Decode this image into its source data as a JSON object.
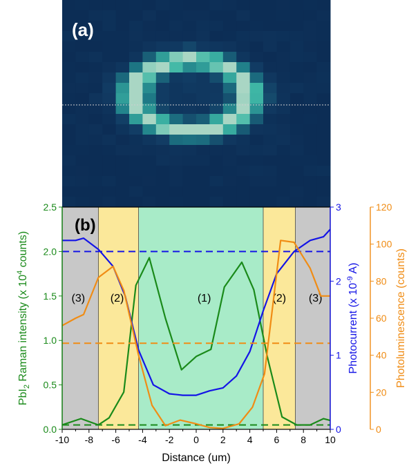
{
  "panel_a": {
    "label": "(a)",
    "colors": {
      "background": "#0c2d55",
      "dim": "#123d65",
      "mid": "#1f7d88",
      "bright": "#3fb8a6",
      "pale": "#a9d6c4",
      "dotted_line": "#cfcfcf"
    }
  },
  "panel_b": {
    "label": "(b)",
    "region_labels": [
      "(3)",
      "(2)",
      "(1)",
      "(2)",
      "(3)"
    ],
    "region_colors": {
      "(1)": "#a8ebc8",
      "(2)": "#fbe89a",
      "(3)": "#c8c8c8"
    }
  },
  "chart_data": {
    "type": "line",
    "title": "",
    "xlabel": "Distance (um)",
    "ylabel_left": "PbI2 Raman intensity (x 10^4 counts)",
    "ylabel_left_parts": {
      "pre": "PbI",
      "sub": "2",
      "mid": " Raman intensity (x 10",
      "sup": "4",
      "post": " counts)"
    },
    "ylabel_right1": "Photocurrent (x 10^-9 A)",
    "ylabel_right1_parts": {
      "pre": "Photocurrent (x 10",
      "sup": "-9",
      "post": " A)"
    },
    "ylabel_right2": "Photoluminescence (counts)",
    "xlim": [
      -10,
      10
    ],
    "ylim_left": [
      0,
      2.5
    ],
    "ylim_right1": [
      0,
      3
    ],
    "ylim_right2": [
      0,
      120
    ],
    "x_ticks": [
      -10,
      -8,
      -6,
      -4,
      -2,
      0,
      2,
      4,
      6,
      8,
      10
    ],
    "x_tick_labels": [
      "-10",
      "-8",
      "-6",
      "-4",
      "-2",
      "0",
      "2",
      "4",
      "6",
      "8",
      "10"
    ],
    "left_ticks": [
      0.0,
      0.5,
      1.0,
      1.5,
      2.0,
      2.5
    ],
    "left_tick_labels": [
      "0.0",
      "0.5",
      "1.0",
      "1.5",
      "2.0",
      "2.5"
    ],
    "right1_ticks": [
      0,
      1,
      2,
      3
    ],
    "right1_tick_labels": [
      "0",
      "1",
      "2",
      "3"
    ],
    "right2_ticks": [
      0,
      20,
      40,
      60,
      80,
      100,
      120
    ],
    "right2_tick_labels": [
      "0",
      "20",
      "40",
      "60",
      "80",
      "100",
      "120"
    ],
    "regions": [
      {
        "label": "(3)",
        "x0": -10,
        "x1": -7.3
      },
      {
        "label": "(2)",
        "x0": -7.3,
        "x1": -4.3
      },
      {
        "label": "(1)",
        "x0": -4.3,
        "x1": 5.0
      },
      {
        "label": "(2)",
        "x0": 5.0,
        "x1": 7.4
      },
      {
        "label": "(3)",
        "x0": 7.4,
        "x1": 10
      }
    ],
    "series": [
      {
        "name": "PbI2 Raman intensity",
        "axis": "left",
        "color": "#1a8a1a",
        "x": [
          -10,
          -8.6,
          -7.3,
          -6.5,
          -5.4,
          -4.5,
          -3.5,
          -2.3,
          -1.1,
          0,
          1.1,
          2.1,
          3.4,
          4.3,
          5.3,
          6.4,
          7.5,
          8.5,
          9.5,
          10
        ],
        "y": [
          0.05,
          0.12,
          0.05,
          0.13,
          0.42,
          1.62,
          1.93,
          1.25,
          0.67,
          0.82,
          0.9,
          1.6,
          1.88,
          1.57,
          0.82,
          0.14,
          0.05,
          0.05,
          0.12,
          0.1
        ]
      },
      {
        "name": "PbI2 Raman intensity reference",
        "axis": "left",
        "color": "#1a8a1a",
        "dashed": true,
        "x": [
          -10,
          10
        ],
        "y": [
          0.05,
          0.05
        ]
      },
      {
        "name": "Photocurrent",
        "axis": "right1",
        "color": "#1414e6",
        "x": [
          -10,
          -9,
          -8.4,
          -7.3,
          -6.2,
          -5.3,
          -4.3,
          -3.2,
          -2,
          -1,
          0,
          1,
          2,
          3,
          4,
          5,
          6,
          7.3,
          8.5,
          9.5,
          10
        ],
        "y": [
          2.55,
          2.55,
          2.58,
          2.43,
          2.2,
          1.8,
          1.07,
          0.6,
          0.48,
          0.46,
          0.46,
          0.52,
          0.56,
          0.72,
          1.05,
          1.6,
          2.1,
          2.4,
          2.55,
          2.6,
          2.7
        ]
      },
      {
        "name": "Photocurrent reference",
        "axis": "right1",
        "color": "#1414e6",
        "dashed": true,
        "x": [
          -10,
          10
        ],
        "y": [
          2.4,
          2.4
        ]
      },
      {
        "name": "Photoluminescence",
        "axis": "right2",
        "color": "#f08c14",
        "x": [
          -10,
          -9,
          -8.4,
          -7.3,
          -6.2,
          -5.4,
          -4.3,
          -3.3,
          -2.3,
          -1.2,
          0,
          1,
          2,
          3.2,
          4.2,
          5.1,
          6.3,
          7.3,
          8.5,
          9.3,
          10
        ],
        "y": [
          56,
          60,
          62,
          82,
          88,
          75,
          40,
          13,
          2,
          5,
          3,
          1,
          0.5,
          3,
          12,
          30,
          102,
          101,
          87,
          72,
          72
        ]
      },
      {
        "name": "Photoluminescence reference",
        "axis": "right2",
        "color": "#f08c14",
        "dashed": true,
        "x": [
          -10,
          10
        ],
        "y": [
          46.5,
          46.5
        ]
      }
    ]
  }
}
